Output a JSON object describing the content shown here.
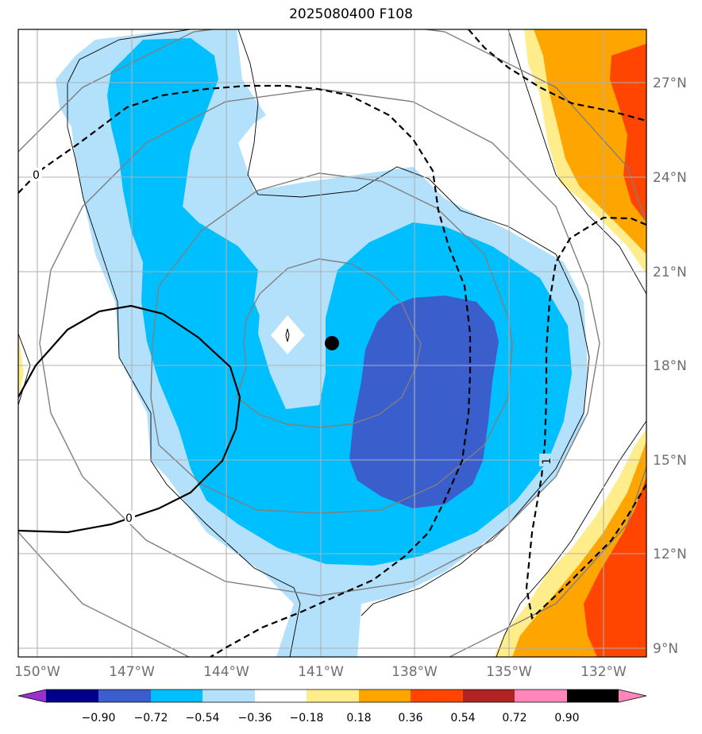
{
  "title": "2025080400 F108",
  "map": {
    "lon_range": [
      -150.6,
      -130.7
    ],
    "lat_range": [
      8.8,
      28.7
    ],
    "lon_ticks": [
      "150°W",
      "147°W",
      "144°W",
      "141°W",
      "138°W",
      "135°W",
      "132°W"
    ],
    "lat_ticks": [
      "27°N",
      "24°N",
      "21°N",
      "18°N",
      "15°N",
      "12°N",
      "9°N"
    ],
    "storm_center": {
      "lon": -140.6,
      "lat": 18.7
    },
    "contour_labels": [
      "0",
      "0",
      "1"
    ],
    "fill_colors": {
      "light_blue": "#b3e0fa",
      "cyan": "#00bfff",
      "royal_blue": "#3a5fcd",
      "pale_yellow": "#ffec8b",
      "orange": "#ffa500",
      "orange_red": "#ff4500"
    }
  },
  "colorbar": {
    "colors": [
      "#9932cc",
      "#00008b",
      "#3a5fcd",
      "#00bfff",
      "#b3e0fa",
      "#ffffff",
      "#ffec8b",
      "#ffa500",
      "#ff4500",
      "#b22222",
      "#ff86bb"
    ],
    "labels": [
      "−0.90",
      "−0.72",
      "−0.54",
      "−0.36",
      "−0.18",
      "0.18",
      "0.36",
      "0.54",
      "0.72",
      "0.90"
    ]
  }
}
